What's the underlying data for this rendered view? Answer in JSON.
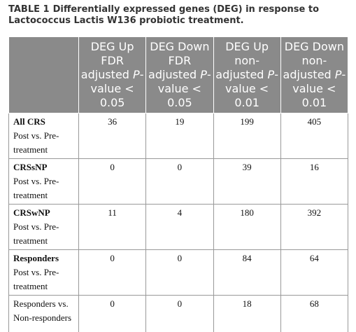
{
  "caption": {
    "label": "TABLE 1",
    "text": "Differentially expressed genes (DEG) in response to Lactococcus Lactis W136 probiotic treatment."
  },
  "table": {
    "columns": [
      [
        "DEG Up FDR adjusted ",
        "P",
        "-value < 0.05"
      ],
      [
        "DEG Down FDR adjusted ",
        "P",
        "-value < 0.05"
      ],
      [
        "DEG Up non-adjusted ",
        "P",
        "-value < 0.01"
      ],
      [
        "DEG Down non-adjusted ",
        "P",
        "-value < 0.01"
      ]
    ],
    "rows": [
      {
        "title": "All CRS",
        "subtitle": "Post vs. Pre-treatment",
        "values": [
          36,
          19,
          199,
          405
        ]
      },
      {
        "title": "CRSsNP",
        "subtitle": "Post vs. Pre-treatment",
        "values": [
          0,
          0,
          39,
          16
        ]
      },
      {
        "title": "CRSwNP",
        "subtitle": "Post vs. Pre-treatment",
        "values": [
          11,
          4,
          180,
          392
        ]
      },
      {
        "title": "Responders",
        "subtitle": "Post vs. Pre-treatment",
        "values": [
          0,
          0,
          84,
          64
        ]
      },
      {
        "subtitle": "Responders vs. Non-responders",
        "values": [
          0,
          0,
          18,
          68
        ]
      }
    ]
  }
}
